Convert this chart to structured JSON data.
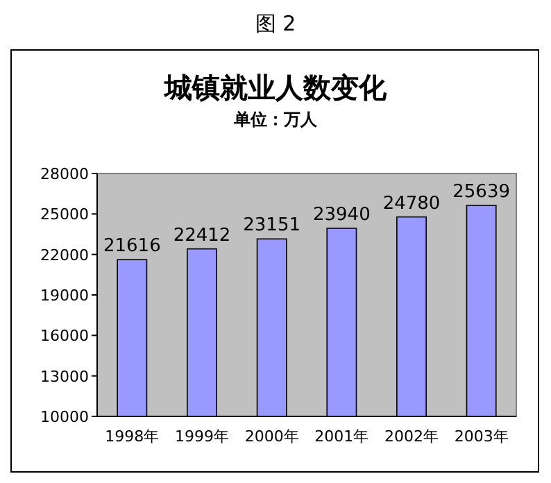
{
  "chart_data": {
    "type": "bar",
    "title": "城镇就业人数变化",
    "subtitle": "单位：万人",
    "annotations": [
      "图 2"
    ],
    "categories": [
      "1998年",
      "1999年",
      "2000年",
      "2001年",
      "2002年",
      "2003年"
    ],
    "values": [
      21616,
      22412,
      23151,
      23940,
      24780,
      25639
    ],
    "color": "#9999ff",
    "data_labels": true,
    "ylim": [
      10000,
      28000
    ],
    "yticks": [
      10000,
      13000,
      16000,
      19000,
      22000,
      25000,
      28000
    ],
    "grid": false
  }
}
